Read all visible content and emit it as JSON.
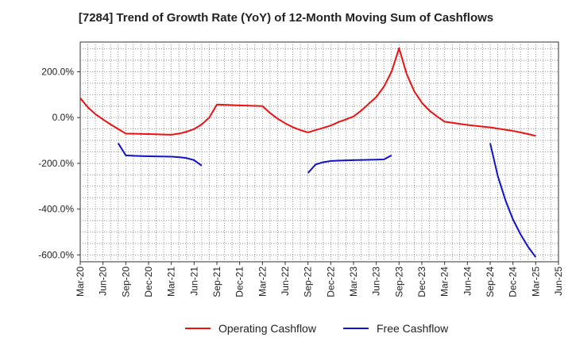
{
  "chart_data": {
    "type": "line",
    "title": "[7284]  Trend of Growth Rate (YoY) of 12-Month Moving Sum of Cashflows",
    "xlabel": "",
    "ylabel": "",
    "ylim": [
      -630,
      330
    ],
    "grid": true,
    "legend_position": "bottom",
    "y_ticks": [
      {
        "value": 200,
        "label": "200.0%"
      },
      {
        "value": 0,
        "label": "0.0%"
      },
      {
        "value": -200,
        "label": "-200.0%"
      },
      {
        "value": -400,
        "label": "-400.0%"
      },
      {
        "value": -600,
        "label": "-600.0%"
      }
    ],
    "x_tick_labels": [
      "Mar-20",
      "Jun-20",
      "Sep-20",
      "Dec-20",
      "Mar-21",
      "Jun-21",
      "Sep-21",
      "Dec-21",
      "Mar-22",
      "Jun-22",
      "Sep-22",
      "Dec-22",
      "Mar-23",
      "Jun-23",
      "Sep-23",
      "Dec-23",
      "Mar-24",
      "Jun-24",
      "Sep-24",
      "Dec-24",
      "Mar-25",
      "Jun-25"
    ],
    "x_months": [
      "Mar-20",
      "Apr-20",
      "May-20",
      "Jun-20",
      "Jul-20",
      "Aug-20",
      "Sep-20",
      "Oct-20",
      "Nov-20",
      "Dec-20",
      "Jan-21",
      "Feb-21",
      "Mar-21",
      "Apr-21",
      "May-21",
      "Jun-21",
      "Jul-21",
      "Aug-21",
      "Sep-21",
      "Oct-21",
      "Nov-21",
      "Dec-21",
      "Jan-22",
      "Feb-22",
      "Mar-22",
      "Apr-22",
      "May-22",
      "Jun-22",
      "Jul-22",
      "Aug-22",
      "Sep-22",
      "Oct-22",
      "Nov-22",
      "Dec-22",
      "Jan-23",
      "Feb-23",
      "Mar-23",
      "Apr-23",
      "May-23",
      "Jun-23",
      "Jul-23",
      "Aug-23",
      "Sep-23",
      "Oct-23",
      "Nov-23",
      "Dec-23",
      "Jan-24",
      "Feb-24",
      "Mar-24",
      "Apr-24",
      "May-24",
      "Jun-24",
      "Jul-24",
      "Aug-24",
      "Sep-24",
      "Oct-24",
      "Nov-24",
      "Dec-24",
      "Jan-25",
      "Feb-25",
      "Mar-25",
      "Apr-25",
      "May-25",
      "Jun-25"
    ],
    "series": [
      {
        "name": "Operating Cashflow",
        "color": "#ee1111",
        "points": [
          [
            "Mar-20",
            85
          ],
          [
            "Apr-20",
            45
          ],
          [
            "May-20",
            15
          ],
          [
            "Jun-20",
            -8
          ],
          [
            "Jul-20",
            -30
          ],
          [
            "Aug-20",
            -50
          ],
          [
            "Sep-20",
            -70
          ],
          [
            "Dec-20",
            -72
          ],
          [
            "Mar-21",
            -75
          ],
          [
            "Apr-21",
            -70
          ],
          [
            "May-21",
            -62
          ],
          [
            "Jun-21",
            -50
          ],
          [
            "Jul-21",
            -30
          ],
          [
            "Aug-21",
            0
          ],
          [
            "Sep-21",
            57
          ],
          [
            "Dec-21",
            53
          ],
          [
            "Mar-22",
            50
          ],
          [
            "Apr-22",
            20
          ],
          [
            "May-22",
            -5
          ],
          [
            "Jun-22",
            -25
          ],
          [
            "Jul-22",
            -42
          ],
          [
            "Aug-22",
            -55
          ],
          [
            "Sep-22",
            -65
          ],
          [
            "Oct-22",
            -55
          ],
          [
            "Nov-22",
            -45
          ],
          [
            "Dec-22",
            -35
          ],
          [
            "Jan-23",
            -20
          ],
          [
            "Feb-23",
            -8
          ],
          [
            "Mar-23",
            5
          ],
          [
            "Apr-23",
            30
          ],
          [
            "May-23",
            60
          ],
          [
            "Jun-23",
            90
          ],
          [
            "Jul-23",
            135
          ],
          [
            "Aug-23",
            200
          ],
          [
            "Sep-23",
            303
          ],
          [
            "Oct-23",
            190
          ],
          [
            "Nov-23",
            115
          ],
          [
            "Dec-23",
            65
          ],
          [
            "Jan-24",
            30
          ],
          [
            "Feb-24",
            5
          ],
          [
            "Mar-24",
            -18
          ],
          [
            "Jun-24",
            -32
          ],
          [
            "Sep-24",
            -43
          ],
          [
            "Dec-24",
            -58
          ],
          [
            "Jan-25",
            -65
          ],
          [
            "Feb-25",
            -72
          ],
          [
            "Mar-25",
            -80
          ]
        ]
      },
      {
        "name": "Free Cashflow",
        "color": "#1111cc",
        "segments": [
          [
            [
              "Aug-20",
              -112
            ],
            [
              "Sep-20",
              -165
            ],
            [
              "Oct-20",
              -167
            ],
            [
              "Nov-20",
              -168
            ],
            [
              "Dec-20",
              -169
            ],
            [
              "Mar-21",
              -171
            ],
            [
              "Apr-21",
              -173
            ],
            [
              "May-21",
              -177
            ],
            [
              "Jun-21",
              -186
            ],
            [
              "Jul-21",
              -210
            ]
          ],
          [
            [
              "Sep-22",
              -242
            ],
            [
              "Oct-22",
              -205
            ],
            [
              "Nov-22",
              -195
            ],
            [
              "Dec-22",
              -190
            ],
            [
              "Jan-23",
              -188
            ],
            [
              "Mar-23",
              -186
            ],
            [
              "Jun-23",
              -184
            ],
            [
              "Jul-23",
              -183
            ],
            [
              "Aug-23",
              -165
            ]
          ],
          [
            [
              "Sep-24",
              -112
            ],
            [
              "Oct-24",
              -255
            ],
            [
              "Nov-24",
              -360
            ],
            [
              "Dec-24",
              -445
            ],
            [
              "Jan-25",
              -510
            ],
            [
              "Feb-25",
              -565
            ],
            [
              "Mar-25",
              -610
            ]
          ]
        ]
      }
    ]
  }
}
